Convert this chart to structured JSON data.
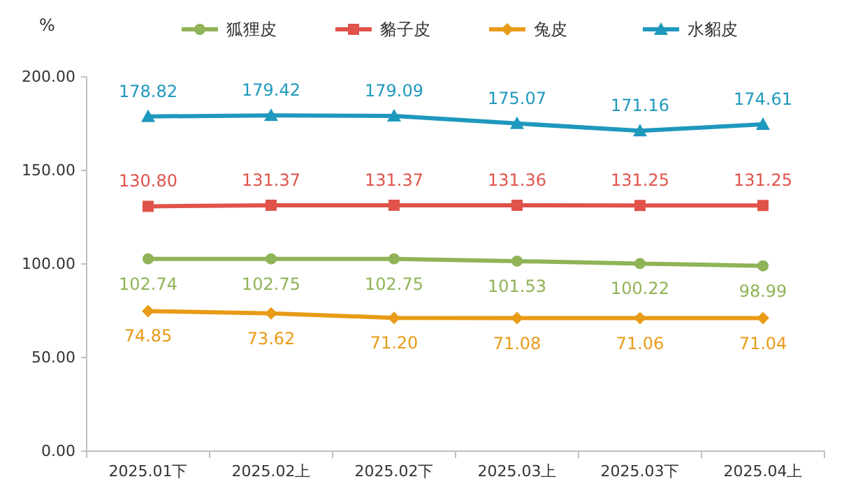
{
  "chart_data": {
    "type": "line",
    "ylabel": "%",
    "categories": [
      "2025.01下",
      "2025.02上",
      "2025.02下",
      "2025.03上",
      "2025.03下",
      "2025.04上"
    ],
    "ylim": [
      0,
      200
    ],
    "yticks": [
      {
        "value": 0,
        "label": "0.00"
      },
      {
        "value": 50,
        "label": "50.00"
      },
      {
        "value": 100,
        "label": "100.00"
      },
      {
        "value": 150,
        "label": "150.00"
      },
      {
        "value": 200,
        "label": "200.00"
      }
    ],
    "grid": false,
    "legend": "top",
    "marker": "circle",
    "line_style": "solid",
    "series": [
      {
        "name": "狐狸皮",
        "color": "#8fb356",
        "marker": "circle",
        "values": [
          102.74,
          102.75,
          102.75,
          101.53,
          100.22,
          98.99
        ],
        "value_labels": [
          "102.74",
          "102.75",
          "102.75",
          "101.53",
          "100.22",
          "98.99"
        ]
      },
      {
        "name": "貉子皮",
        "color": "#e0534b",
        "marker": "square",
        "values": [
          130.8,
          131.37,
          131.37,
          131.36,
          131.25,
          131.25
        ],
        "value_labels": [
          "130.80",
          "131.37",
          "131.37",
          "131.36",
          "131.25",
          "131.25"
        ]
      },
      {
        "name": "兔皮",
        "color": "#e89b17",
        "marker": "diamond",
        "values": [
          74.85,
          73.62,
          71.2,
          71.08,
          71.06,
          71.04
        ],
        "value_labels": [
          "74.85",
          "73.62",
          "71.20",
          "71.08",
          "71.06",
          "71.04"
        ]
      },
      {
        "name": "水貂皮",
        "color": "#1e98bd",
        "marker": "triangle",
        "values": [
          178.82,
          179.42,
          179.09,
          175.07,
          171.16,
          174.61
        ],
        "value_labels": [
          "178.82",
          "179.42",
          "179.09",
          "175.07",
          "171.16",
          "174.61"
        ]
      }
    ]
  }
}
